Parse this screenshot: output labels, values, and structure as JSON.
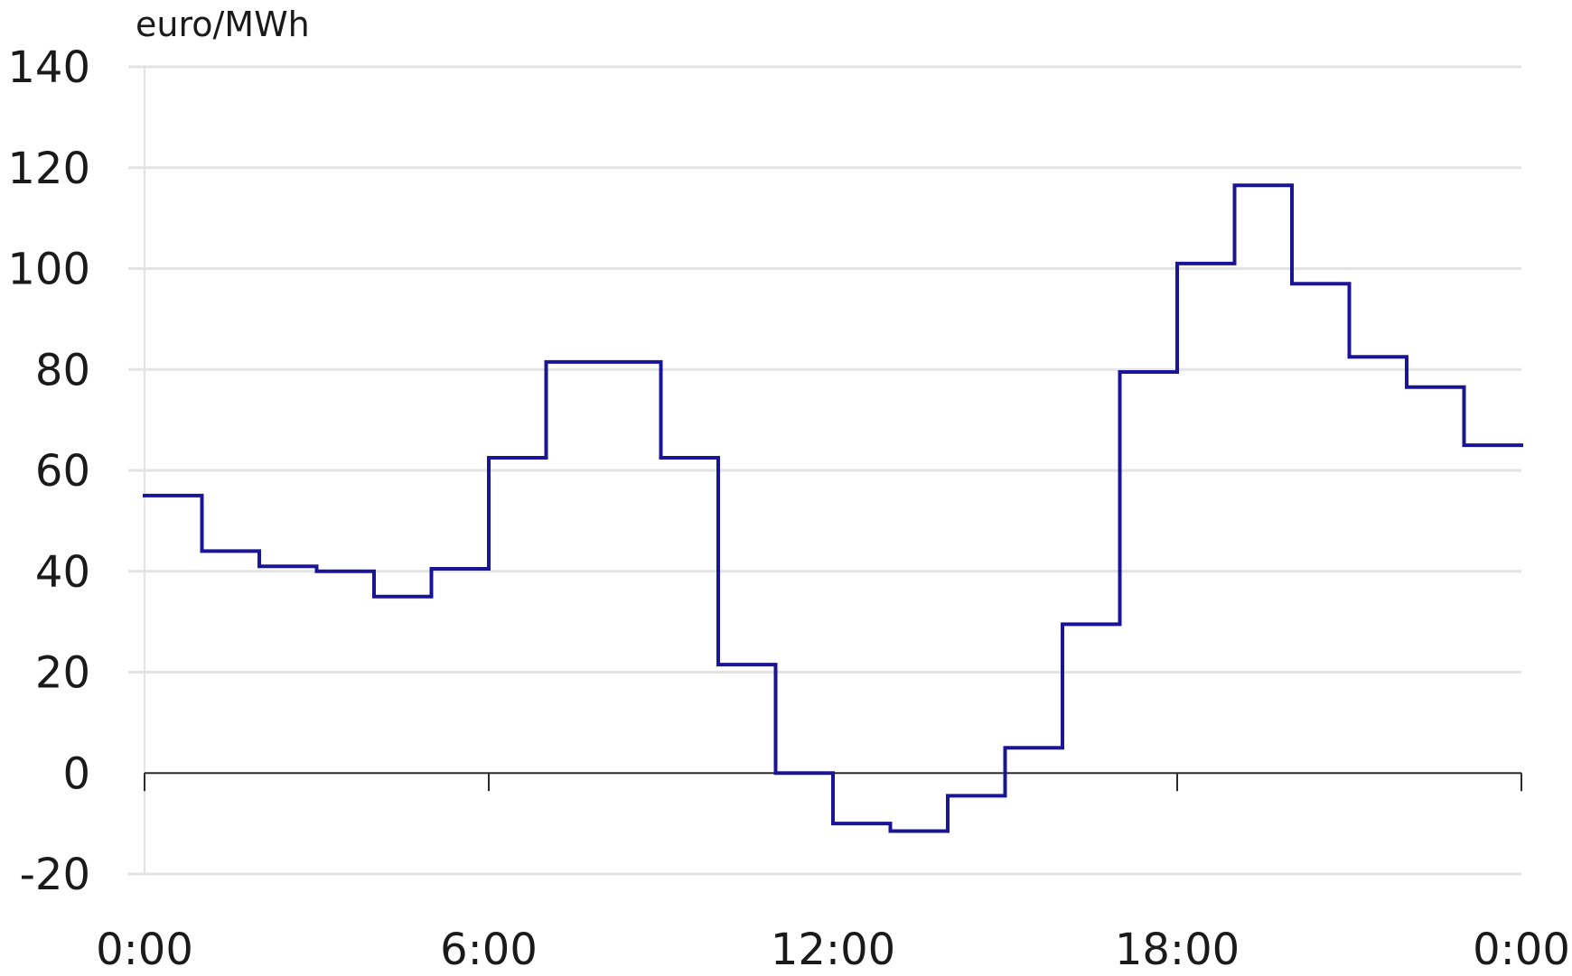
{
  "chart_data": {
    "type": "line",
    "style": "step",
    "ylabel": "euro/MWh",
    "xlabel": "",
    "title": "",
    "ylim": [
      -20,
      140
    ],
    "yticks": [
      -20,
      0,
      20,
      40,
      60,
      80,
      100,
      120,
      140
    ],
    "ytick_labels": [
      "-20",
      "0",
      "20",
      "40",
      "60",
      "80",
      "100",
      "120",
      "140"
    ],
    "xlim": [
      0,
      24
    ],
    "xticks": [
      0,
      6,
      12,
      18,
      24
    ],
    "xtick_labels": [
      "0:00",
      "6:00",
      "12:00",
      "18:00",
      "0:00"
    ],
    "grid": true,
    "line_color": "#1a1496",
    "grid_color": "#e3e3e3",
    "series": [
      {
        "hours": [
          0,
          1,
          2,
          3,
          4,
          5,
          6,
          7,
          8,
          9,
          10,
          11,
          12,
          13,
          14,
          15,
          16,
          17,
          18,
          19,
          20,
          21,
          22,
          23
        ],
        "values": [
          55,
          44,
          41,
          40,
          35,
          40.5,
          62.5,
          81.5,
          81.5,
          62.5,
          21.5,
          0,
          -10,
          -11.5,
          -4.5,
          5,
          29.5,
          79.5,
          101,
          116.5,
          97,
          82.5,
          76.5,
          65
        ]
      }
    ]
  }
}
